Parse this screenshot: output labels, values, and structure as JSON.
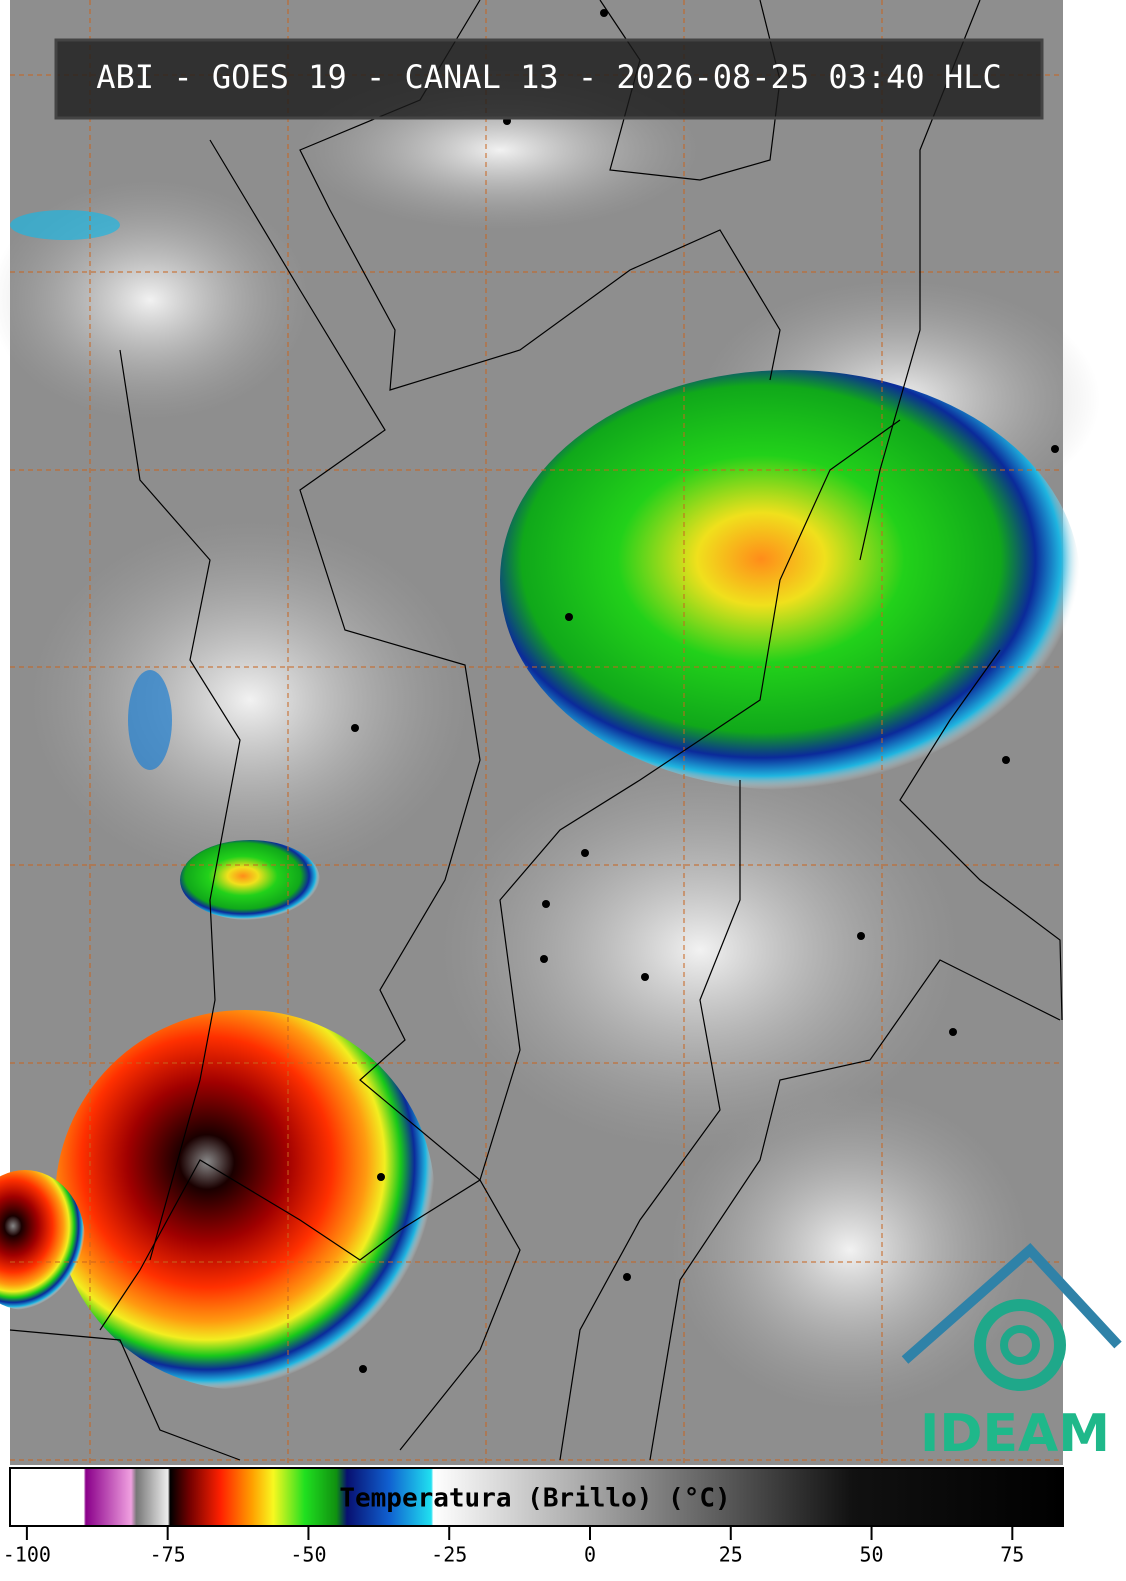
{
  "title": "ABI - GOES 19 - CANAL 13 - 2026-08-25 03:40 HLC",
  "colorbar": {
    "label": "Temperatura (Brillo) (°C)",
    "lim": [
      -103,
      84
    ],
    "ticks": [
      -100,
      -75,
      -50,
      -25,
      0,
      25,
      50,
      75
    ]
  },
  "logo": "IDEAM"
}
